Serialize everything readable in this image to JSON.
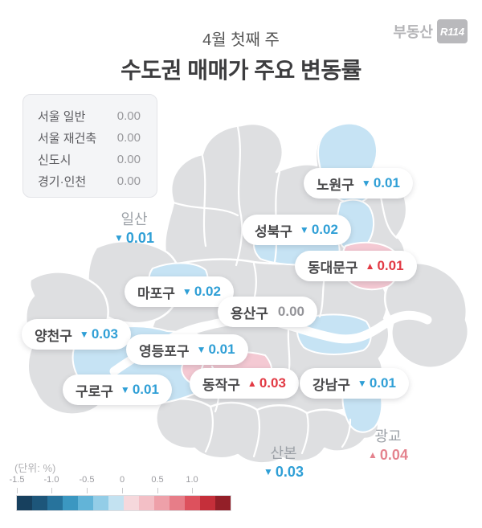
{
  "header": {
    "subtitle": "4월 첫째 주",
    "title": "수도권 매매가 주요 변동률",
    "logo_text": "부동산",
    "logo_badge": "R114"
  },
  "summary": {
    "rows": [
      {
        "label": "서울 일반",
        "value": "0.00"
      },
      {
        "label": "서울 재건축",
        "value": "0.00"
      },
      {
        "label": "신도시",
        "value": "0.00"
      },
      {
        "label": "경기·인천",
        "value": "0.00"
      }
    ]
  },
  "map": {
    "pills": [
      {
        "name": "노원구",
        "direction": "down",
        "glyph": "▼",
        "value": "0.01"
      },
      {
        "name": "성북구",
        "direction": "down",
        "glyph": "▼",
        "value": "0.02"
      },
      {
        "name": "동대문구",
        "direction": "up",
        "glyph": "▲",
        "value": "0.01"
      },
      {
        "name": "마포구",
        "direction": "down",
        "glyph": "▼",
        "value": "0.02"
      },
      {
        "name": "용산구",
        "direction": "flat",
        "glyph": "",
        "value": "0.00"
      },
      {
        "name": "양천구",
        "direction": "down",
        "glyph": "▼",
        "value": "0.03"
      },
      {
        "name": "영등포구",
        "direction": "down",
        "glyph": "▼",
        "value": "0.01"
      },
      {
        "name": "구로구",
        "direction": "down",
        "glyph": "▼",
        "value": "0.01"
      },
      {
        "name": "동작구",
        "direction": "up",
        "glyph": "▲",
        "value": "0.03"
      },
      {
        "name": "강남구",
        "direction": "down",
        "glyph": "▼",
        "value": "0.01"
      }
    ],
    "plain": [
      {
        "name": "일산",
        "direction": "down",
        "glyph": "▼",
        "value": "0.01"
      },
      {
        "name": "산본",
        "direction": "down",
        "glyph": "▼",
        "value": "0.03"
      },
      {
        "name": "광교",
        "direction": "up",
        "glyph": "▲",
        "value": "0.04"
      }
    ]
  },
  "footer": {
    "unit_label": "(단위:  %)",
    "scale_ticks": [
      "-1.5",
      "-1.0",
      "-0.5",
      "0",
      "0.5",
      "1.0"
    ],
    "scale_colors": [
      "#17405e",
      "#1d567a",
      "#27739c",
      "#3b97c1",
      "#62b4d8",
      "#93cde7",
      "#c3e2f1",
      "#f6d8dc",
      "#f3bfc6",
      "#eea0a9",
      "#e77d88",
      "#dd515d",
      "#c52f3a",
      "#931f28"
    ]
  },
  "colors": {
    "value_down_blue": "#2f9fd6",
    "value_up_red": "#e23a44",
    "value_up_soft_red": "#e4838e",
    "value_flat_gray": "#939398",
    "map_gray": "#dedfe1",
    "map_blue": "#c6e3f4",
    "map_pink": "#f4c9d3"
  },
  "chart_data": {
    "type": "heatmap",
    "title": "수도권 매매가 주요 변동률 (4월 첫째 주)",
    "unit": "%",
    "summary": [
      {
        "name": "서울 일반",
        "value": 0.0
      },
      {
        "name": "서울 재건축",
        "value": 0.0
      },
      {
        "name": "신도시",
        "value": 0.0
      },
      {
        "name": "경기·인천",
        "value": 0.0
      }
    ],
    "regions": [
      {
        "name": "노원구",
        "value": -0.01
      },
      {
        "name": "성북구",
        "value": -0.02
      },
      {
        "name": "동대문구",
        "value": 0.01
      },
      {
        "name": "마포구",
        "value": -0.02
      },
      {
        "name": "용산구",
        "value": 0.0
      },
      {
        "name": "양천구",
        "value": -0.03
      },
      {
        "name": "영등포구",
        "value": -0.01
      },
      {
        "name": "구로구",
        "value": -0.01
      },
      {
        "name": "동작구",
        "value": 0.03
      },
      {
        "name": "강남구",
        "value": -0.01
      },
      {
        "name": "일산",
        "value": -0.01
      },
      {
        "name": "산본",
        "value": -0.03
      },
      {
        "name": "광교",
        "value": 0.04
      }
    ],
    "colorbar": {
      "min": -1.5,
      "max": 1.5,
      "ticks": [
        -1.5,
        -1.0,
        -0.5,
        0,
        0.5,
        1.0
      ],
      "legend_position": "bottom-left"
    }
  }
}
